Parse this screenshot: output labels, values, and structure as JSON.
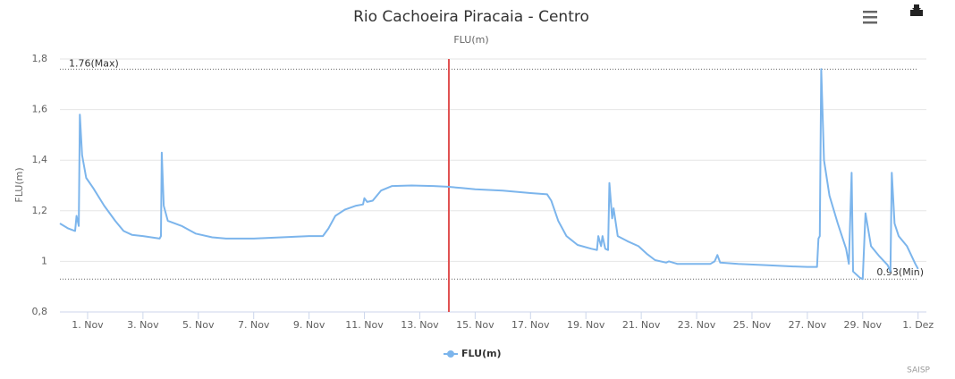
{
  "chart_data": {
    "type": "line",
    "title": "Rio Cachoeira Piracaia - Centro",
    "subtitle": "FLU(m)",
    "y_label": "FLU(m)",
    "credits": "SAISP",
    "x": [
      0,
      0.3,
      0.55,
      0.6,
      0.68,
      0.72,
      0.8,
      0.95,
      1.2,
      1.6,
      2.0,
      2.3,
      2.6,
      3.0,
      3.3,
      3.6,
      3.65,
      3.68,
      3.75,
      3.9,
      4.4,
      4.9,
      5.5,
      6.0,
      7.0,
      8.0,
      9.0,
      9.5,
      9.7,
      9.95,
      10.3,
      10.7,
      10.95,
      11.0,
      11.1,
      11.3,
      11.6,
      12.0,
      12.7,
      13.5,
      14.0,
      14.5,
      15.0,
      16.0,
      17.0,
      17.6,
      17.75,
      18.0,
      18.3,
      18.7,
      19.2,
      19.4,
      19.45,
      19.55,
      19.6,
      19.7,
      19.8,
      19.85,
      19.95,
      20.0,
      20.15,
      20.5,
      20.9,
      21.2,
      21.5,
      21.9,
      22.0,
      22.3,
      23.0,
      23.5,
      23.65,
      23.75,
      23.85,
      24.5,
      25.5,
      26.5,
      27.0,
      27.35,
      27.4,
      27.45,
      27.5,
      27.6,
      27.8,
      28.1,
      28.4,
      28.5,
      28.6,
      28.65,
      28.9,
      29.0,
      29.1,
      29.3,
      29.6,
      29.9,
      30.0,
      30.05,
      30.15,
      30.3,
      30.6,
      30.9,
      31.0
    ],
    "series": [
      {
        "name": "FLU(m)",
        "color": "#7cb5ec",
        "values": [
          1.15,
          1.13,
          1.12,
          1.18,
          1.14,
          1.58,
          1.42,
          1.33,
          1.29,
          1.22,
          1.16,
          1.12,
          1.105,
          1.1,
          1.095,
          1.09,
          1.1,
          1.43,
          1.22,
          1.16,
          1.14,
          1.11,
          1.095,
          1.09,
          1.09,
          1.095,
          1.1,
          1.1,
          1.13,
          1.18,
          1.205,
          1.22,
          1.225,
          1.25,
          1.235,
          1.24,
          1.28,
          1.298,
          1.3,
          1.298,
          1.295,
          1.29,
          1.285,
          1.28,
          1.27,
          1.265,
          1.24,
          1.16,
          1.1,
          1.065,
          1.05,
          1.045,
          1.1,
          1.06,
          1.1,
          1.05,
          1.045,
          1.31,
          1.17,
          1.21,
          1.1,
          1.08,
          1.06,
          1.03,
          1.005,
          0.995,
          1.0,
          0.99,
          0.99,
          0.99,
          1.0,
          1.025,
          0.995,
          0.99,
          0.985,
          0.98,
          0.978,
          0.978,
          1.09,
          1.1,
          1.76,
          1.4,
          1.26,
          1.15,
          1.05,
          0.99,
          1.35,
          0.96,
          0.935,
          0.93,
          1.19,
          1.06,
          1.02,
          0.985,
          0.96,
          1.35,
          1.15,
          1.1,
          1.06,
          0.99,
          0.97
        ]
      }
    ],
    "xlim": [
      0,
      31.3
    ],
    "xticks": [
      {
        "value": 1,
        "label": "1. Nov"
      },
      {
        "value": 3,
        "label": "3. Nov"
      },
      {
        "value": 5,
        "label": "5. Nov"
      },
      {
        "value": 7,
        "label": "7. Nov"
      },
      {
        "value": 9,
        "label": "9. Nov"
      },
      {
        "value": 11,
        "label": "11. Nov"
      },
      {
        "value": 13,
        "label": "13. Nov"
      },
      {
        "value": 15,
        "label": "15. Nov"
      },
      {
        "value": 17,
        "label": "17. Nov"
      },
      {
        "value": 19,
        "label": "19. Nov"
      },
      {
        "value": 21,
        "label": "21. Nov"
      },
      {
        "value": 23,
        "label": "23. Nov"
      },
      {
        "value": 25,
        "label": "25. Nov"
      },
      {
        "value": 27,
        "label": "27. Nov"
      },
      {
        "value": 29,
        "label": "29. Nov"
      },
      {
        "value": 31,
        "label": "1. Dez"
      }
    ],
    "ylim": [
      0.8,
      1.8
    ],
    "yticks": [
      {
        "value": 0.8,
        "label": "0,8"
      },
      1,
      {
        "value": 1.2,
        "label": "1,2"
      },
      {
        "value": 1.4,
        "label": "1,4"
      },
      {
        "value": 1.6,
        "label": "1,6"
      },
      {
        "value": 1.8,
        "label": "1,8"
      }
    ],
    "grid": true,
    "plot_lines": [
      {
        "value": 1.76,
        "label": "1.76(Max)"
      },
      {
        "value": 0.93,
        "label": "0.93(Min)"
      }
    ],
    "marker_x": 14.05,
    "marker_color": "#e05050"
  }
}
